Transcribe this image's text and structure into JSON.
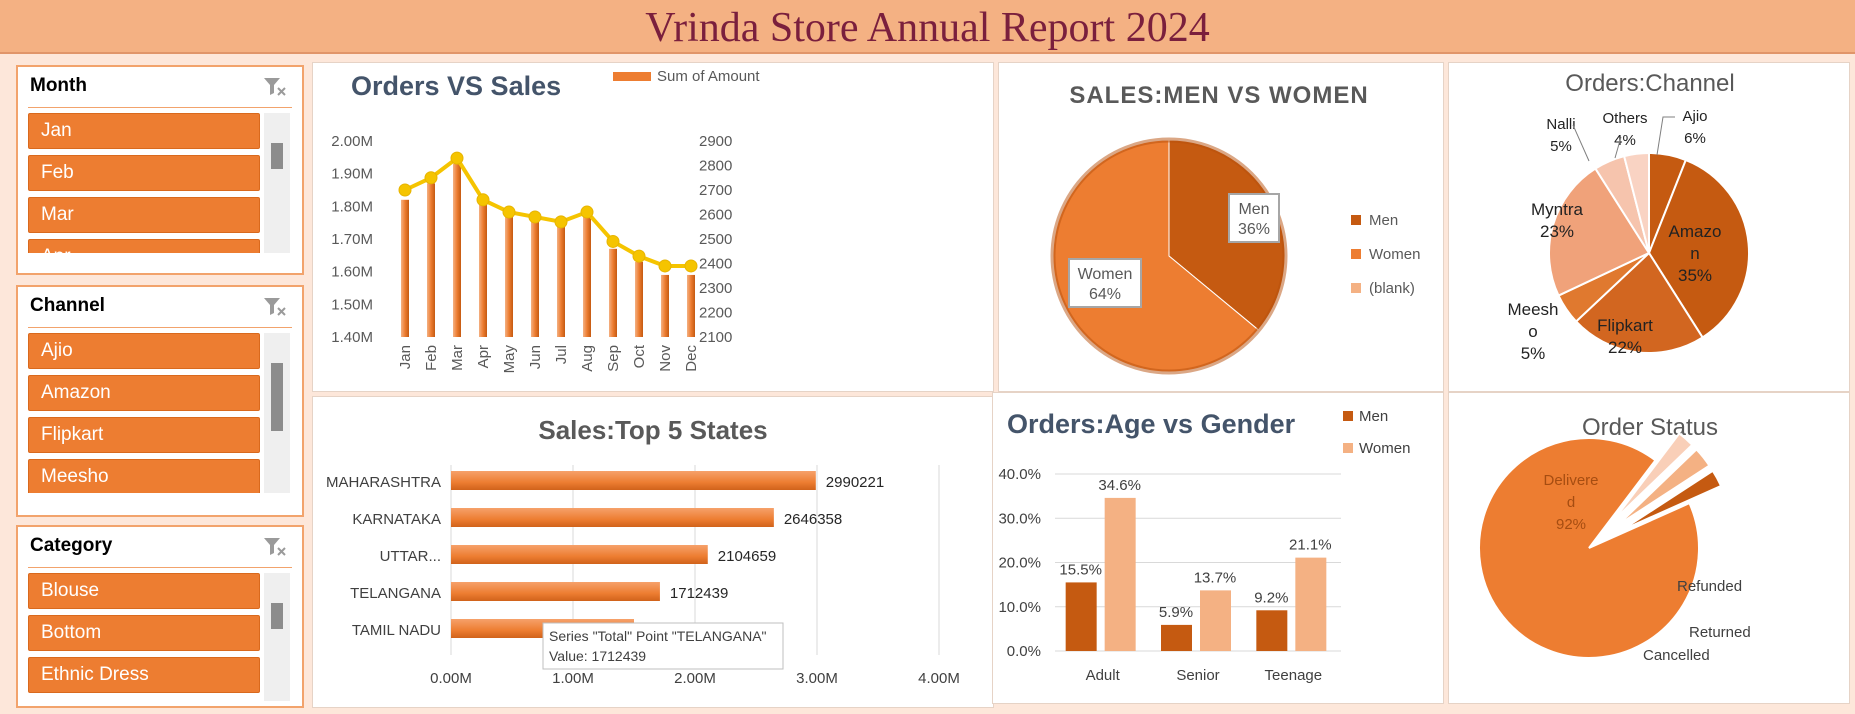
{
  "title": "Vrinda Store Annual Report 2024",
  "colors": {
    "accent": "#ed7d31",
    "dark": "#c55a11",
    "light": "#f4b183",
    "line": "#f5c400",
    "title": "#7a1f3d"
  },
  "slicers": [
    {
      "label": "Month",
      "items": [
        "Jan",
        "Feb",
        "Mar",
        "Apr"
      ],
      "icon": "filter-clear-icon"
    },
    {
      "label": "Channel",
      "items": [
        "Ajio",
        "Amazon",
        "Flipkart",
        "Meesho"
      ],
      "icon": "filter-clear-icon"
    },
    {
      "label": "Category",
      "items": [
        "Blouse",
        "Bottom",
        "Ethnic Dress"
      ],
      "icon": "filter-clear-icon"
    }
  ],
  "chart_data": [
    {
      "type": "bar+line",
      "title": "Orders VS Sales",
      "legend": "Sum of Amount",
      "legend_position": "top",
      "categories": [
        "Jan",
        "Feb",
        "Mar",
        "Apr",
        "May",
        "Jun",
        "Jul",
        "Aug",
        "Sep",
        "Oct",
        "Nov",
        "Dec"
      ],
      "bar_values": [
        1.82,
        1.87,
        1.93,
        1.82,
        1.78,
        1.76,
        1.74,
        1.78,
        1.67,
        1.63,
        1.59,
        1.59
      ],
      "line_values": [
        2700,
        2750,
        2830,
        2660,
        2610,
        2590,
        2570,
        2610,
        2490,
        2430,
        2390,
        2390
      ],
      "y_left_ticks": [
        "1.40M",
        "1.50M",
        "1.60M",
        "1.70M",
        "1.80M",
        "1.90M",
        "2.00M"
      ],
      "y_left_range": [
        1.4,
        2.0
      ],
      "y_right_ticks": [
        "2100",
        "2200",
        "2300",
        "2400",
        "2500",
        "2600",
        "2700",
        "2800",
        "2900"
      ],
      "y_right_range": [
        2100,
        2900
      ],
      "grid": false
    },
    {
      "type": "pie",
      "title": "SALES:MEN VS WOMEN",
      "slices": [
        {
          "name": "Men",
          "value": 36,
          "label": "36%"
        },
        {
          "name": "Women",
          "value": 64,
          "label": "64%"
        }
      ],
      "legend": [
        "Men",
        "Women",
        "(blank)"
      ],
      "legend_position": "right"
    },
    {
      "type": "pie",
      "title": "Orders:Channel",
      "slices": [
        {
          "name": "Ajio",
          "value": 6,
          "label": "6%"
        },
        {
          "name": "Amazon",
          "value": 35,
          "label": "35%"
        },
        {
          "name": "Flipkart",
          "value": 22,
          "label": "22%"
        },
        {
          "name": "Meesho",
          "value": 5,
          "label": "5%"
        },
        {
          "name": "Myntra",
          "value": 23,
          "label": "23%"
        },
        {
          "name": "Nalli",
          "value": 5,
          "label": "5%"
        },
        {
          "name": "Others",
          "value": 4,
          "label": "4%"
        }
      ],
      "display_names": {
        "Ajio": "Ajio",
        "Amazon": [
          "Amazo",
          "n"
        ],
        "Flipkart": "Flipkart",
        "Meesho": [
          "Meesh",
          "o"
        ],
        "Myntra": "Myntra",
        "Nalli": "Nalli",
        "Others": "Others"
      }
    },
    {
      "type": "bar",
      "orientation": "horizontal",
      "title": "Sales:Top 5 States",
      "categories": [
        "MAHARASHTRA",
        "KARNATAKA",
        "UTTAR...",
        "TELANGANA",
        "TAMIL NADU"
      ],
      "values": [
        2990221,
        2646358,
        2104659,
        1712439,
        1500000
      ],
      "value_labels": [
        "2990221",
        "2646358",
        "2104659",
        "1712439",
        ""
      ],
      "x_ticks": [
        "0.00M",
        "1.00M",
        "2.00M",
        "3.00M",
        "4.00M"
      ],
      "x_range": [
        0,
        4000000
      ],
      "tooltip": {
        "line1": "Series \"Total\" Point \"TELANGANA\"",
        "line2": "Value: 1712439"
      },
      "grid": true
    },
    {
      "type": "bar",
      "title": "Orders:Age vs Gender",
      "categories": [
        "Adult",
        "Senior",
        "Teenage"
      ],
      "series": [
        {
          "name": "Men",
          "values": [
            15.5,
            5.9,
            9.2
          ],
          "labels": [
            "15.5%",
            "5.9%",
            "9.2%"
          ]
        },
        {
          "name": "Women",
          "values": [
            34.6,
            13.7,
            21.1
          ],
          "labels": [
            "34.6%",
            "13.7%",
            "21.1%"
          ]
        }
      ],
      "y_ticks": [
        "0.0%",
        "10.0%",
        "20.0%",
        "30.0%",
        "40.0%"
      ],
      "y_range": [
        0,
        40
      ],
      "legend_position": "top-right",
      "grid": true
    },
    {
      "type": "pie",
      "title": "Order Status",
      "slices": [
        {
          "name": "Delivered",
          "value": 92,
          "label": "92%",
          "display": [
            "Delivere",
            "d"
          ]
        },
        {
          "name": "Cancelled",
          "value": 2.5,
          "label": "",
          "display": [
            "Cancelled"
          ]
        },
        {
          "name": "Returned",
          "value": 3,
          "label": "",
          "display": [
            "Returned"
          ]
        },
        {
          "name": "Refunded",
          "value": 2.5,
          "label": "",
          "display": [
            "Refunded"
          ]
        }
      ]
    }
  ]
}
